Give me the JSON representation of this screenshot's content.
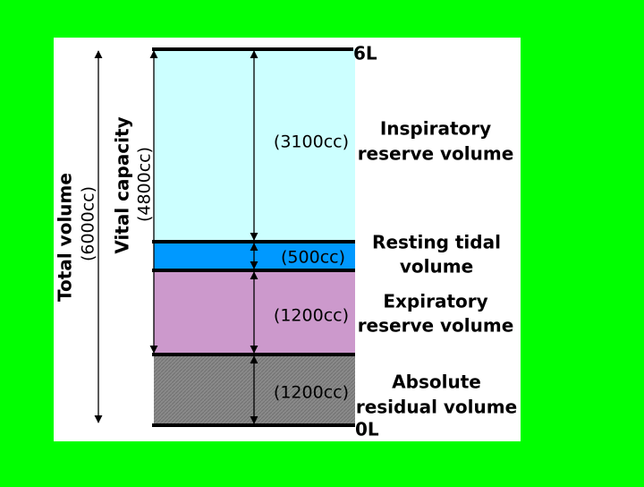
{
  "scale": {
    "top": "6L",
    "bottom": "0L"
  },
  "spans": [
    {
      "label": "Total volume",
      "amount": "(6000cc)"
    },
    {
      "label": "Vital capacity",
      "amount": "(4800cc)"
    }
  ],
  "compartments": [
    {
      "amount": "(3100cc)",
      "label_lines": [
        "Inspiratory",
        "reserve volume"
      ]
    },
    {
      "amount": "(500cc)",
      "label_lines": [
        "Resting tidal",
        "volume"
      ]
    },
    {
      "amount": "(1200cc)",
      "label_lines": [
        "Expiratory",
        "reserve volume"
      ]
    },
    {
      "amount": "(1200cc)",
      "label_lines": [
        "Absolute",
        "residual volume"
      ]
    }
  ]
}
